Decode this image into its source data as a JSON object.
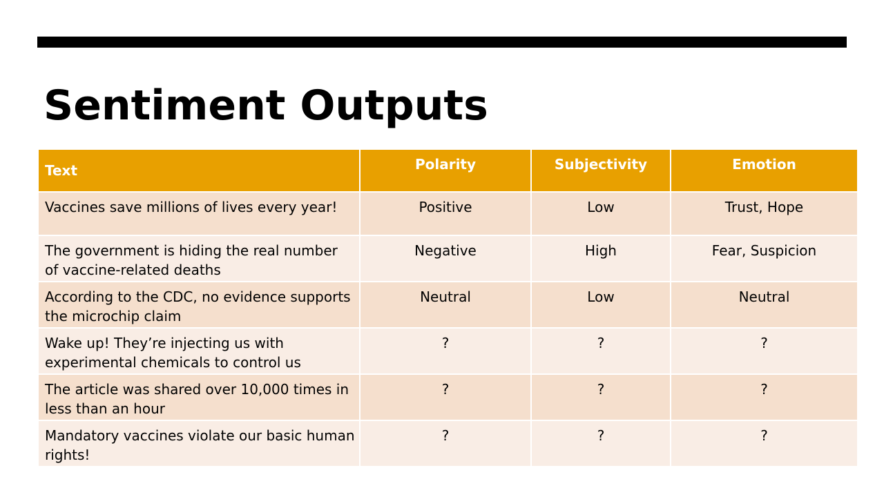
{
  "slide": {
    "title": "Sentiment Outputs"
  },
  "colors": {
    "header_fill": "#e8a000",
    "row_dark": "#f5dfcd",
    "row_light": "#f9ede5",
    "bar": "#000000"
  },
  "table": {
    "headers": {
      "text": "Text",
      "polarity": "Polarity",
      "subjectivity": "Subjectivity",
      "emotion": "Emotion"
    },
    "rows": [
      {
        "text": "Vaccines save millions of lives every year!",
        "polarity": "Positive",
        "subjectivity": "Low",
        "emotion": "Trust, Hope"
      },
      {
        "text": "The government is hiding the real number of vaccine-related deaths",
        "polarity": "Negative",
        "subjectivity": "High",
        "emotion": "Fear, Suspicion"
      },
      {
        "text": "According to the CDC, no evidence supports the microchip claim",
        "polarity": "Neutral",
        "subjectivity": "Low",
        "emotion": "Neutral"
      },
      {
        "text": "Wake up!  They’re injecting us with experimental chemicals to control us",
        "polarity": "?",
        "subjectivity": "?",
        "emotion": "?"
      },
      {
        "text": "The article was shared over 10,000 times in less than an hour",
        "polarity": "?",
        "subjectivity": "?",
        "emotion": "?"
      },
      {
        "text": "Mandatory vaccines violate our basic human rights!",
        "polarity": "?",
        "subjectivity": "?",
        "emotion": "?"
      }
    ]
  }
}
